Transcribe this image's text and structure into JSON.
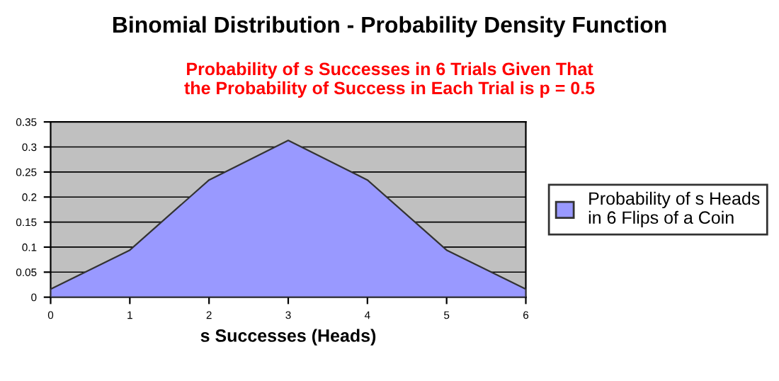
{
  "chart_data": {
    "type": "area",
    "title": "Binomial Distribution - Probability Density Function",
    "subtitle": "Probability of s Successes in 6 Trials Given That\nthe Probability of Success in Each Trial is p = 0.5",
    "xlabel": "s Successes (Heads)",
    "x": [
      0,
      1,
      2,
      3,
      4,
      5,
      6
    ],
    "series": [
      {
        "name": "Probability of s Heads\nin 6 Flips of a Coin",
        "color": "#9999ff",
        "values": [
          0.016,
          0.094,
          0.234,
          0.313,
          0.234,
          0.094,
          0.016
        ]
      }
    ],
    "xlim": [
      0,
      6
    ],
    "xticks": [
      0,
      1,
      2,
      3,
      4,
      5,
      6
    ],
    "ylim": [
      0,
      0.35
    ],
    "yticks": [
      0,
      0.05,
      0.1,
      0.15,
      0.2,
      0.25,
      0.3,
      0.35
    ],
    "grid": "y",
    "legend": "right"
  }
}
